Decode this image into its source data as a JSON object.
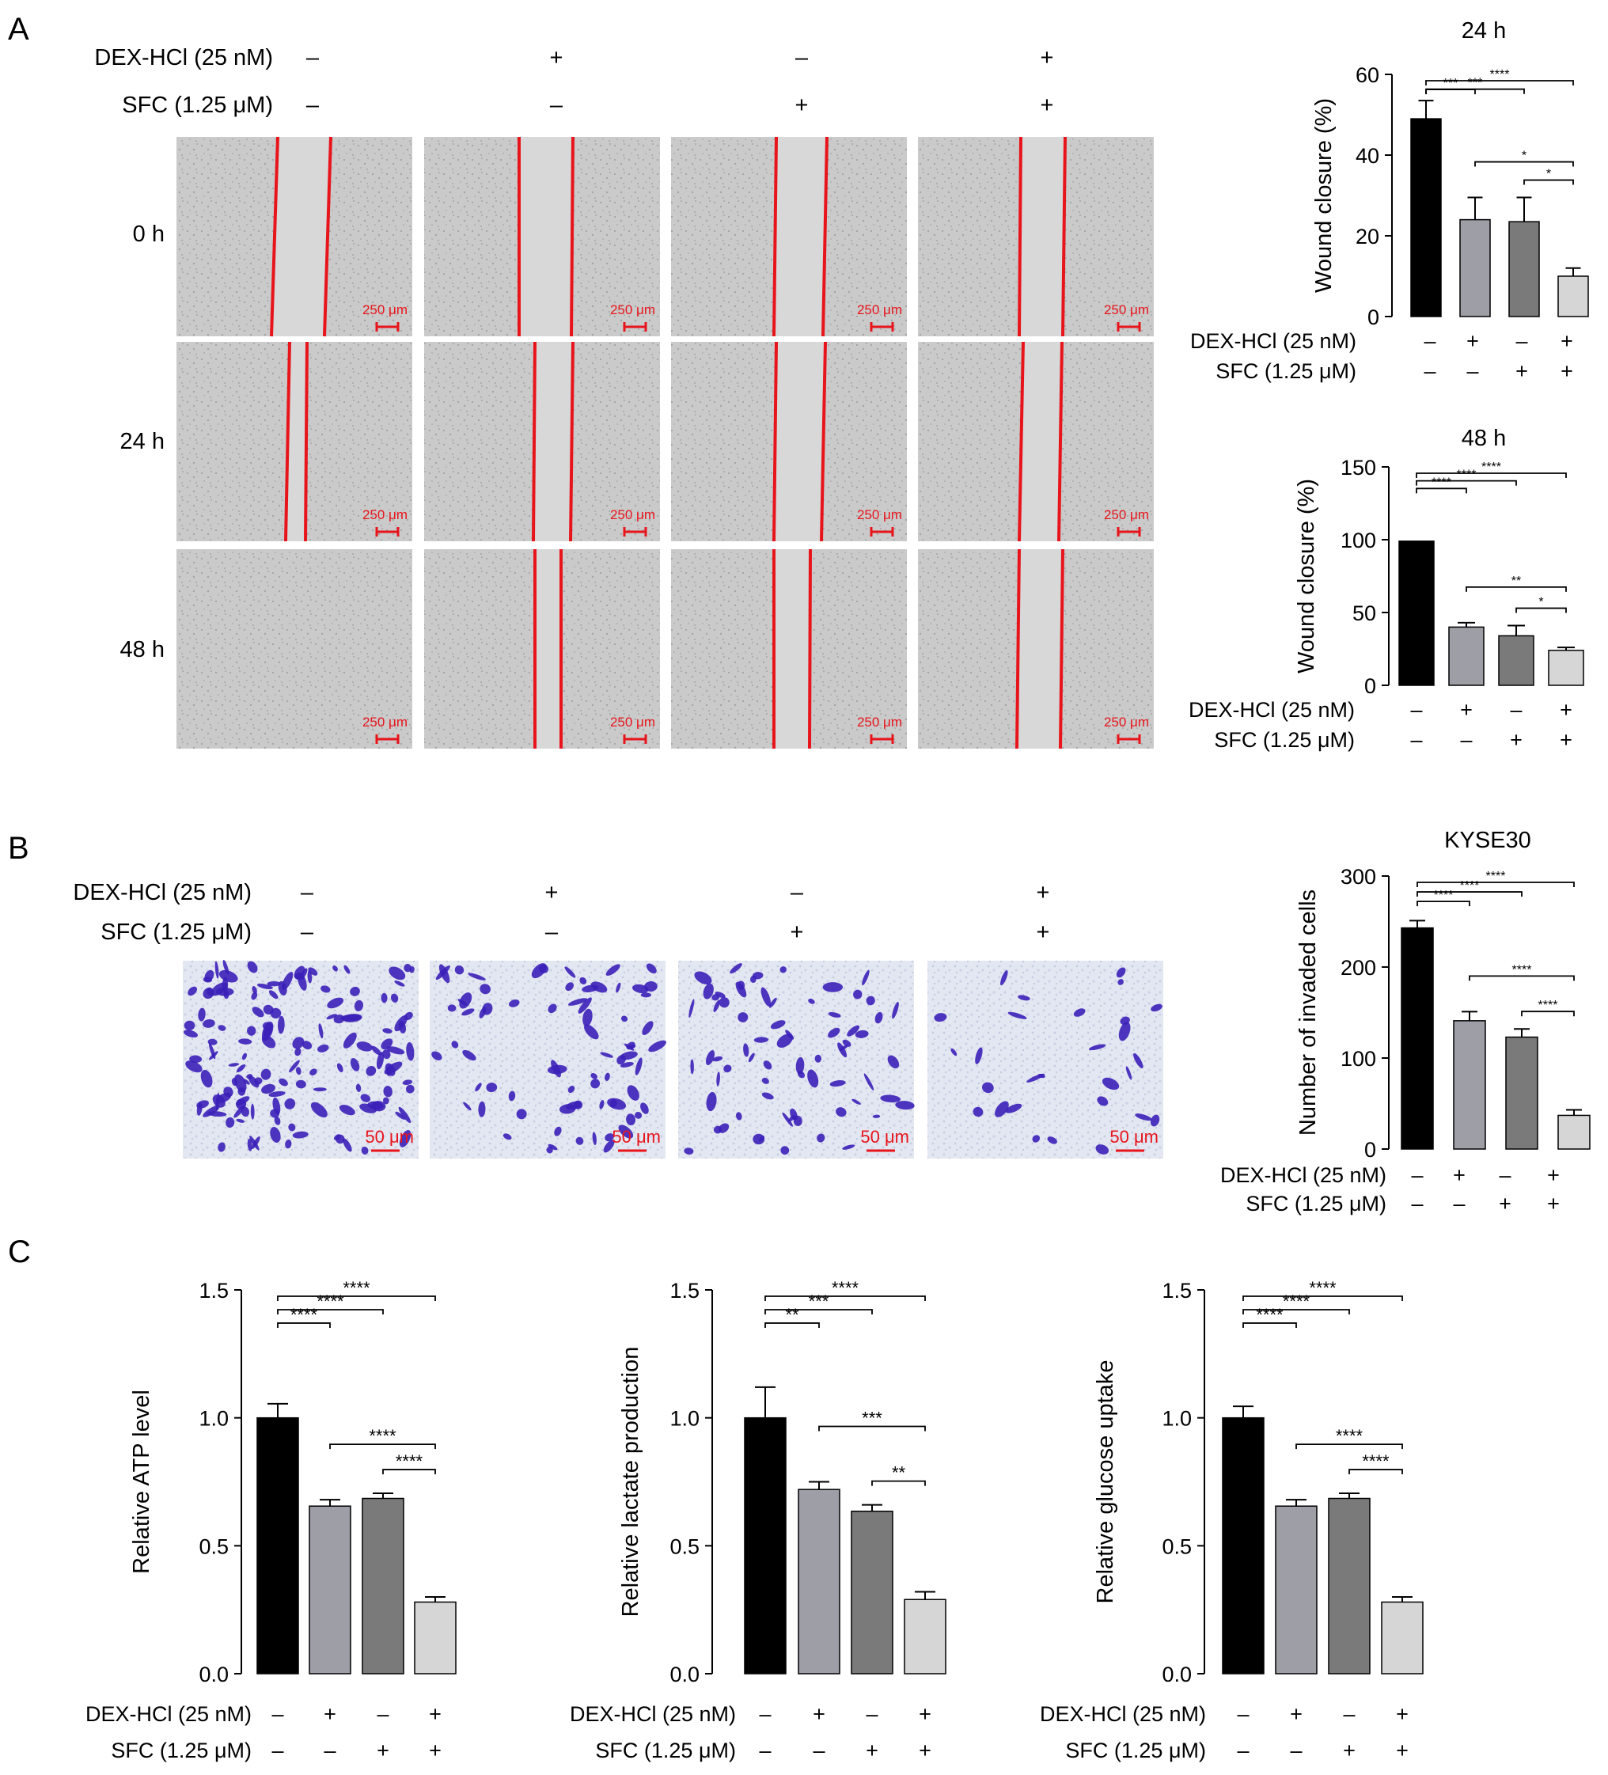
{
  "panel_letters": [
    "A",
    "B",
    "C"
  ],
  "treatment_labels": {
    "dex": "DEX-HCl (25 nM)",
    "sfc": "SFC (1.25 μM)"
  },
  "sign_rows": {
    "dex": [
      "–",
      "+",
      "–",
      "+"
    ],
    "sfc": [
      "–",
      "–",
      "+",
      "+"
    ]
  },
  "time_labels": [
    "0 h",
    "24 h",
    "48 h"
  ],
  "scale_bar_wound": "250 μm",
  "scale_bar_invasion": "50 μm",
  "colors": {
    "bar_fills": [
      "#000000",
      "#9d9ea6",
      "#7a7a7a",
      "#d6d6d6"
    ],
    "wound_line": "#e8141b",
    "scale_bar": "#e8141b",
    "micrograph_bg": "#c9c9c9",
    "wound_gap": "#d8d8d8",
    "invasion_bg": "#e6eaf4",
    "invasion_cells": "#3b20b8"
  },
  "icons": [
    "wound-line",
    "scale-bar",
    "invaded-cell"
  ],
  "chart_data": [
    {
      "id": "wound24",
      "type": "bar",
      "title": "24 h",
      "ylabel": "Wound closure (%)",
      "ylim": [
        0,
        60
      ],
      "yticks": [
        0,
        20,
        40,
        60
      ],
      "values": [
        49,
        24,
        23.5,
        10
      ],
      "errors": [
        4.5,
        5.5,
        6,
        2
      ],
      "significance": [
        {
          "from": 0,
          "to": 1,
          "label": "***"
        },
        {
          "from": 0,
          "to": 2,
          "label": "***"
        },
        {
          "from": 0,
          "to": 3,
          "label": "****"
        },
        {
          "from": 1,
          "to": 3,
          "label": "*"
        },
        {
          "from": 2,
          "to": 3,
          "label": "*"
        }
      ]
    },
    {
      "id": "wound48",
      "type": "bar",
      "title": "48 h",
      "ylabel": "Wound closure (%)",
      "ylim": [
        0,
        150
      ],
      "yticks": [
        0,
        50,
        100,
        150
      ],
      "values": [
        99,
        40,
        34,
        24
      ],
      "errors": [
        0,
        3,
        7,
        2
      ],
      "significance": [
        {
          "from": 0,
          "to": 1,
          "label": "****"
        },
        {
          "from": 0,
          "to": 2,
          "label": "****"
        },
        {
          "from": 0,
          "to": 3,
          "label": "****"
        },
        {
          "from": 1,
          "to": 3,
          "label": "**"
        },
        {
          "from": 2,
          "to": 3,
          "label": "*"
        }
      ]
    },
    {
      "id": "invasion",
      "type": "bar",
      "title": "KYSE30",
      "ylabel": "Number of invaded cells",
      "ylim": [
        0,
        300
      ],
      "yticks": [
        0,
        100,
        200,
        300
      ],
      "values": [
        243,
        141,
        123,
        37
      ],
      "errors": [
        8,
        10,
        9,
        6
      ],
      "significance": [
        {
          "from": 0,
          "to": 1,
          "label": "****"
        },
        {
          "from": 0,
          "to": 2,
          "label": "****"
        },
        {
          "from": 0,
          "to": 3,
          "label": "****"
        },
        {
          "from": 1,
          "to": 3,
          "label": "****"
        },
        {
          "from": 2,
          "to": 3,
          "label": "****"
        }
      ]
    },
    {
      "id": "atp",
      "type": "bar",
      "title": "",
      "ylabel": "Relative ATP level",
      "ylim": [
        0,
        1.5
      ],
      "yticks": [
        "0.0",
        "0.5",
        "1.0",
        "1.5"
      ],
      "values": [
        1.0,
        0.655,
        0.685,
        0.28
      ],
      "errors": [
        0.055,
        0.025,
        0.02,
        0.02
      ],
      "significance": [
        {
          "from": 0,
          "to": 1,
          "label": "****"
        },
        {
          "from": 0,
          "to": 2,
          "label": "****"
        },
        {
          "from": 0,
          "to": 3,
          "label": "****"
        },
        {
          "from": 1,
          "to": 3,
          "label": "****"
        },
        {
          "from": 2,
          "to": 3,
          "label": "****"
        }
      ]
    },
    {
      "id": "lactate",
      "type": "bar",
      "title": "",
      "ylabel": "Relative lactate production",
      "ylim": [
        0,
        1.5
      ],
      "yticks": [
        "0.0",
        "0.5",
        "1.0",
        "1.5"
      ],
      "values": [
        1.0,
        0.72,
        0.635,
        0.29
      ],
      "errors": [
        0.12,
        0.03,
        0.025,
        0.03
      ],
      "significance": [
        {
          "from": 0,
          "to": 1,
          "label": "**"
        },
        {
          "from": 0,
          "to": 2,
          "label": "***"
        },
        {
          "from": 0,
          "to": 3,
          "label": "****"
        },
        {
          "from": 1,
          "to": 3,
          "label": "***"
        },
        {
          "from": 2,
          "to": 3,
          "label": "**"
        }
      ]
    },
    {
      "id": "glucose",
      "type": "bar",
      "title": "",
      "ylabel": "Relative glucose uptake",
      "ylim": [
        0,
        1.5
      ],
      "yticks": [
        "0.0",
        "0.5",
        "1.0",
        "1.5"
      ],
      "values": [
        1.0,
        0.655,
        0.685,
        0.28
      ],
      "errors": [
        0.045,
        0.025,
        0.02,
        0.02
      ],
      "significance": [
        {
          "from": 0,
          "to": 1,
          "label": "****"
        },
        {
          "from": 0,
          "to": 2,
          "label": "****"
        },
        {
          "from": 0,
          "to": 3,
          "label": "****"
        },
        {
          "from": 1,
          "to": 3,
          "label": "****"
        },
        {
          "from": 2,
          "to": 3,
          "label": "****"
        }
      ]
    }
  ]
}
